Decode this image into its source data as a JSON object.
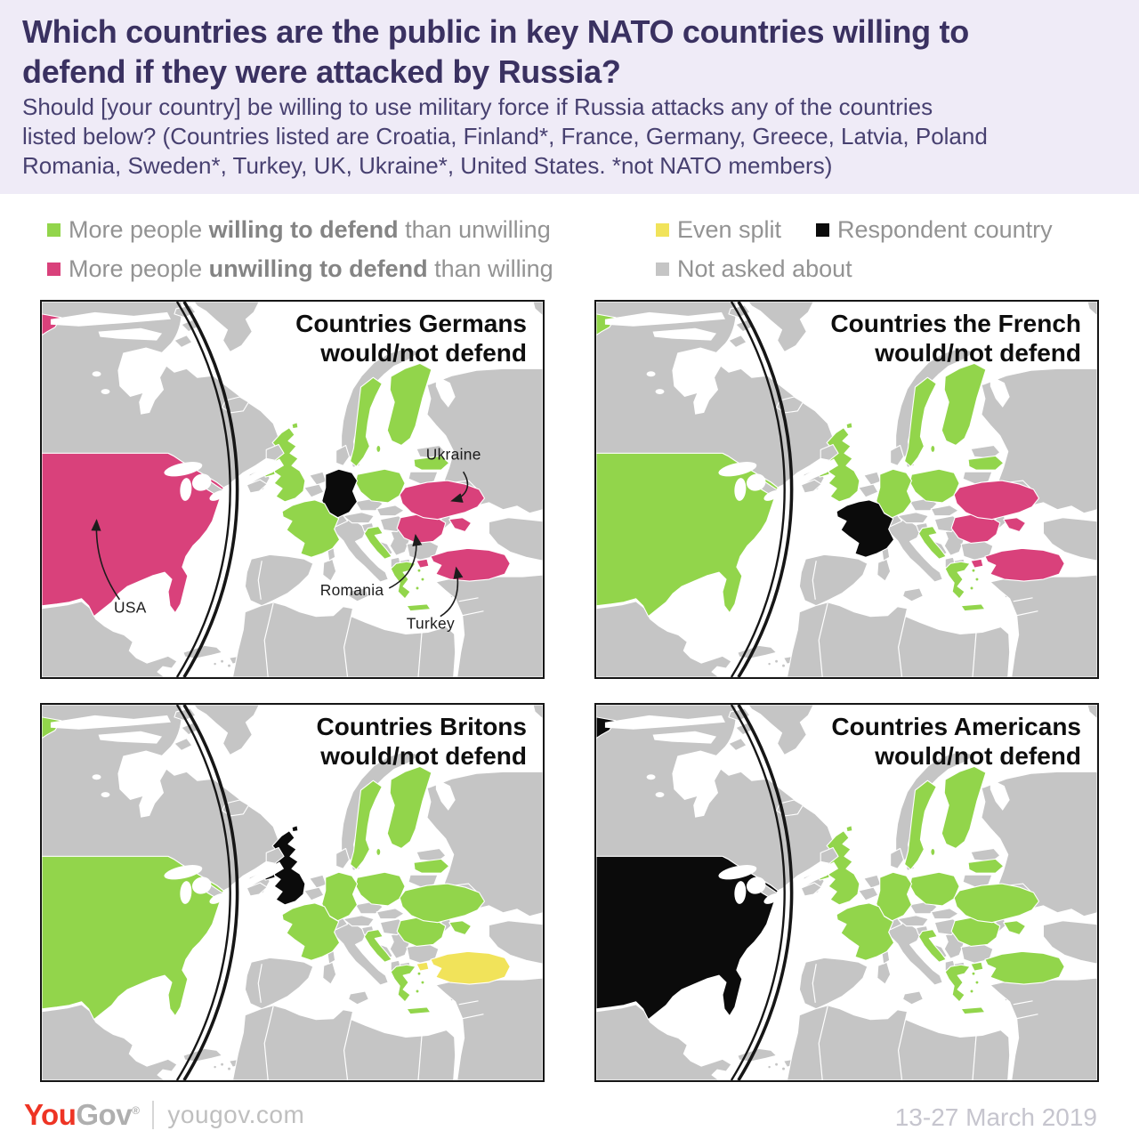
{
  "header": {
    "title": "Which countries are the public in key NATO countries willing to\ndefend if they were attacked by Russia?",
    "subtitle": "Should [your country] be willing to use military force if Russia attacks any of the countries\nlisted below? (Countries listed are Croatia, Finland*, France, Germany, Greece, Latvia, Poland\nRomania, Sweden*, Turkey, UK, Ukraine*, United States.   *not NATO members)"
  },
  "colors": {
    "willing": "#92D54B",
    "unwilling": "#D9417B",
    "even_split": "#F1E35A",
    "respondent": "#0B0B0B",
    "not_asked": "#C5C5C5",
    "land": "#C5C5C5",
    "sea": "#FFFFFF",
    "header_bg": "#EFEBF7",
    "title_text": "#3A3161"
  },
  "legend": {
    "items": [
      {
        "key": "willing",
        "swatch": "#92D54B",
        "prefix": "More people ",
        "bold": "willing to defend",
        "suffix": " than unwilling"
      },
      {
        "key": "unwilling",
        "swatch": "#D9417B",
        "prefix": "More people ",
        "bold": "unwilling to defend",
        "suffix": " than willing"
      },
      {
        "key": "even_split",
        "swatch": "#F1E35A",
        "label": "Even split"
      },
      {
        "key": "respondent",
        "swatch": "#0B0B0B",
        "label": "Respondent country"
      },
      {
        "key": "not_asked",
        "swatch": "#C5C5C5",
        "label": "Not asked about"
      }
    ]
  },
  "panels": [
    {
      "id": "germans",
      "title": "Countries Germans\nwould/not defend",
      "countries": {
        "usa": "unwilling",
        "uk": "willing",
        "france": "willing",
        "germany": "respondent",
        "poland": "willing",
        "sweden": "willing",
        "finland": "willing",
        "latvia": "willing",
        "ukraine": "unwilling",
        "romania": "unwilling",
        "croatia": "willing",
        "greece": "willing",
        "turkey": "unwilling"
      },
      "annotations": [
        {
          "id": "ukraine",
          "label": "Ukraine"
        },
        {
          "id": "usa",
          "label": "USA"
        },
        {
          "id": "romania",
          "label": "Romania"
        },
        {
          "id": "turkey",
          "label": "Turkey"
        }
      ]
    },
    {
      "id": "french",
      "title": "Countries the French\nwould/not defend",
      "countries": {
        "usa": "willing",
        "uk": "willing",
        "france": "respondent",
        "germany": "willing",
        "poland": "willing",
        "sweden": "willing",
        "finland": "willing",
        "latvia": "willing",
        "ukraine": "unwilling",
        "romania": "unwilling",
        "croatia": "willing",
        "greece": "willing",
        "turkey": "unwilling"
      }
    },
    {
      "id": "britons",
      "title": "Countries Britons\nwould/not defend",
      "countries": {
        "usa": "willing",
        "uk": "respondent",
        "france": "willing",
        "germany": "willing",
        "poland": "willing",
        "sweden": "willing",
        "finland": "willing",
        "latvia": "willing",
        "ukraine": "willing",
        "romania": "willing",
        "croatia": "willing",
        "greece": "willing",
        "turkey": "even_split"
      }
    },
    {
      "id": "americans",
      "title": "Countries Americans\nwould/not defend",
      "countries": {
        "usa": "respondent",
        "uk": "willing",
        "france": "willing",
        "germany": "willing",
        "poland": "willing",
        "sweden": "willing",
        "finland": "willing",
        "latvia": "willing",
        "ukraine": "willing",
        "romania": "willing",
        "croatia": "willing",
        "greece": "willing",
        "turkey": "willing"
      }
    }
  ],
  "footer": {
    "logo_you": "You",
    "logo_gov": "Gov",
    "logo_reg": "®",
    "site": "yougov.com",
    "date_range": "13-27 March 2019"
  },
  "chart_data": {
    "type": "choropleth-map-grid",
    "statuses": [
      "willing",
      "unwilling",
      "even_split",
      "respondent",
      "not_asked"
    ],
    "asked_countries": [
      "Croatia",
      "Finland",
      "France",
      "Germany",
      "Greece",
      "Latvia",
      "Poland",
      "Romania",
      "Sweden",
      "Turkey",
      "UK",
      "Ukraine",
      "United States"
    ]
  }
}
